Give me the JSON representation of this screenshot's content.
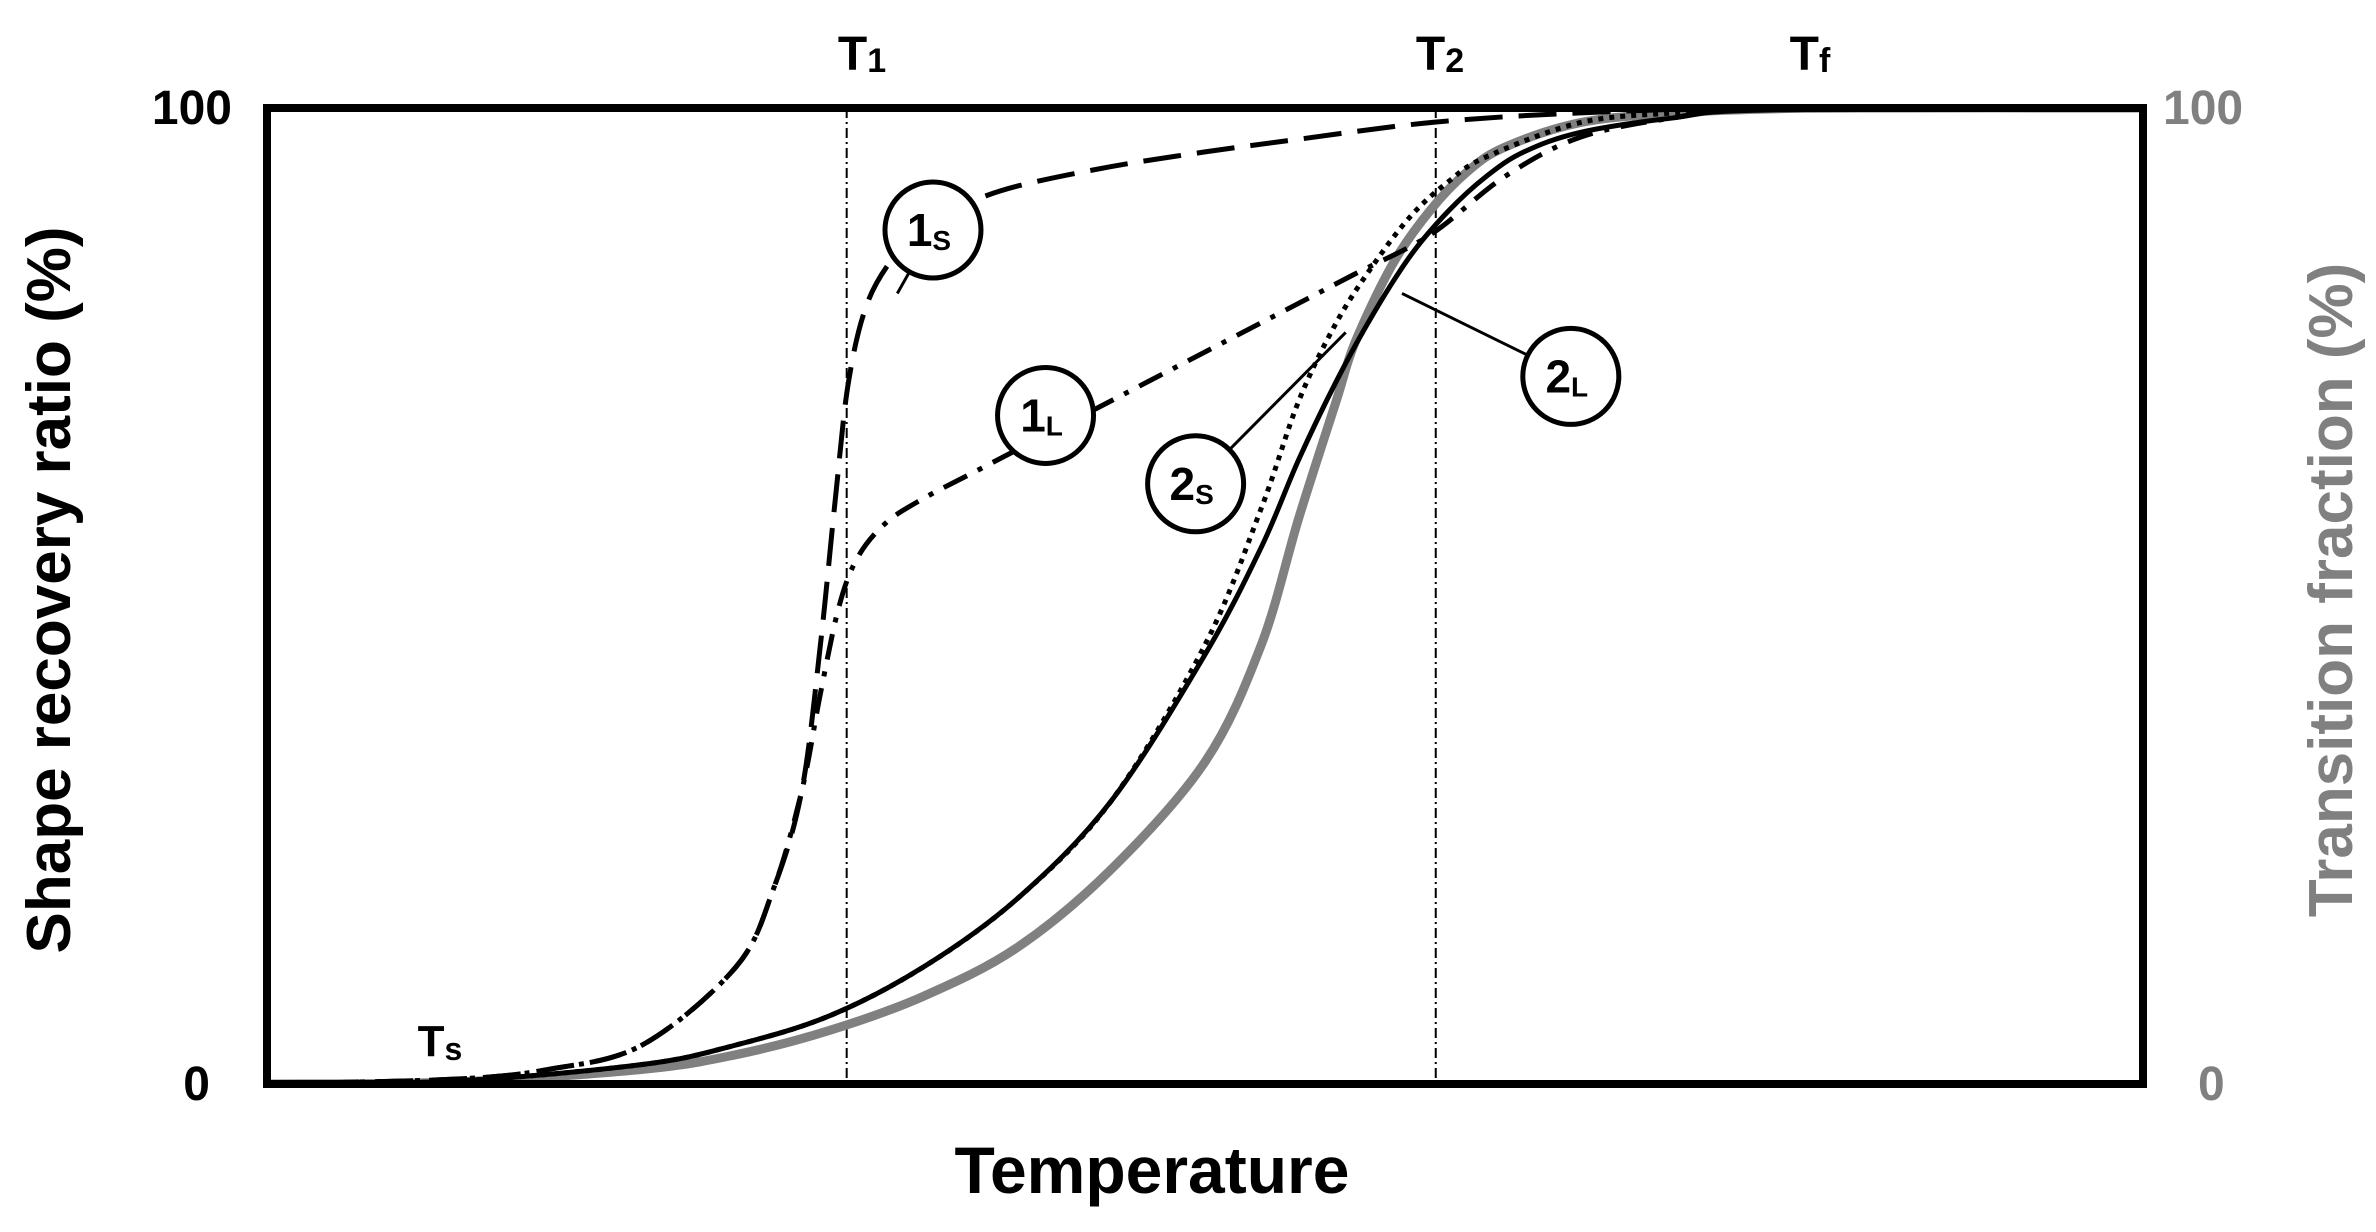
{
  "chart_data": {
    "type": "line",
    "xlabel": "Temperature",
    "ylabel_left": "Shape recovery ratio (%)",
    "ylabel_right": "Transition fraction (%)",
    "yticks_left": [
      "0",
      "100"
    ],
    "yticks_right": [
      "0",
      "100"
    ],
    "ylim": [
      0,
      100
    ],
    "xlim": [
      0,
      100
    ],
    "reference_lines": [
      {
        "main": "T",
        "sub": "1",
        "x": 30.9
      },
      {
        "main": "T",
        "sub": "2",
        "x": 62.3
      }
    ],
    "markers": [
      {
        "main": "T",
        "sub": "s",
        "x": 9.8
      },
      {
        "main": "T",
        "sub": "f",
        "x": 82.0
      }
    ],
    "series": [
      {
        "name": "1s",
        "style": "dashed",
        "color": "#000000",
        "x": [
          0,
          10,
          15,
          20,
          25,
          27,
          28.5,
          29.5,
          30.3,
          31,
          32,
          33.5,
          35,
          37,
          40,
          45,
          50,
          55,
          62,
          70,
          80,
          100
        ],
        "y": [
          0,
          0.5,
          1.5,
          4,
          12,
          20,
          30,
          45,
          60,
          72,
          80,
          85,
          88,
          90,
          92,
          94,
          95.5,
          96.8,
          98.5,
          99.5,
          100,
          100
        ]
      },
      {
        "name": "1L",
        "style": "dashdot",
        "color": "#000000",
        "x": [
          0,
          10,
          15,
          20,
          25,
          27,
          28.5,
          29.5,
          30.5,
          31.5,
          33,
          35,
          38,
          42,
          46,
          50,
          54,
          58,
          62,
          66,
          70,
          75,
          80,
          100
        ],
        "y": [
          0,
          0.5,
          1.5,
          4,
          12,
          20,
          30,
          40,
          49,
          54,
          57.5,
          60,
          63,
          67,
          71,
          75,
          79,
          83,
          87,
          93,
          97,
          99,
          100,
          100
        ]
      },
      {
        "name": "2s",
        "style": "dotted",
        "color": "#000000",
        "x": [
          0,
          10,
          20,
          25,
          30,
          35,
          40,
          45,
          50,
          53,
          55,
          57,
          59,
          61,
          63,
          65,
          70,
          75,
          80,
          100
        ],
        "y": [
          0,
          0.3,
          2,
          4,
          7,
          12,
          19,
          29,
          45,
          59,
          70,
          78,
          84,
          89,
          92.5,
          95,
          98.5,
          99.5,
          100,
          100
        ]
      },
      {
        "name": "2L",
        "style": "solid",
        "color": "#000000",
        "x": [
          0,
          10,
          20,
          25,
          30,
          35,
          40,
          45,
          50,
          53,
          55,
          57,
          59,
          61,
          63,
          65,
          67,
          70,
          75,
          80,
          100
        ],
        "y": [
          0,
          0.3,
          2,
          4,
          7,
          12,
          19,
          29,
          44,
          55,
          64,
          72,
          79,
          85,
          89.5,
          93,
          95.5,
          97.5,
          99,
          99.8,
          100
        ]
      },
      {
        "name": "Transition fraction",
        "style": "solid",
        "color": "#808080",
        "x": [
          0,
          10,
          20,
          25,
          30,
          35,
          40,
          45,
          50,
          53,
          55,
          57,
          58,
          60,
          62,
          64,
          66,
          70,
          75,
          80,
          85,
          100
        ],
        "y": [
          0,
          0.2,
          1.5,
          3,
          5.5,
          9,
          14,
          22,
          33,
          45,
          58,
          70,
          76,
          84,
          89.5,
          93.5,
          96,
          98.5,
          99.5,
          99.9,
          100,
          100
        ]
      }
    ],
    "annotations": [
      {
        "series": "1s",
        "main": "1",
        "sub": "S",
        "pos": [
          35.5,
          87.5
        ],
        "anchor": [
          33.6,
          81
        ]
      },
      {
        "series": "1L",
        "main": "1",
        "sub": "L",
        "pos": [
          41.5,
          68.5
        ],
        "anchor": [
          43.5,
          70
        ]
      },
      {
        "series": "2s",
        "main": "2",
        "sub": "S",
        "pos": [
          49.5,
          61.5
        ],
        "anchor": [
          57.5,
          77
        ]
      },
      {
        "series": "2L",
        "main": "2",
        "sub": "L",
        "pos": [
          69.5,
          72.5
        ],
        "anchor": [
          60.5,
          81
        ]
      }
    ]
  }
}
